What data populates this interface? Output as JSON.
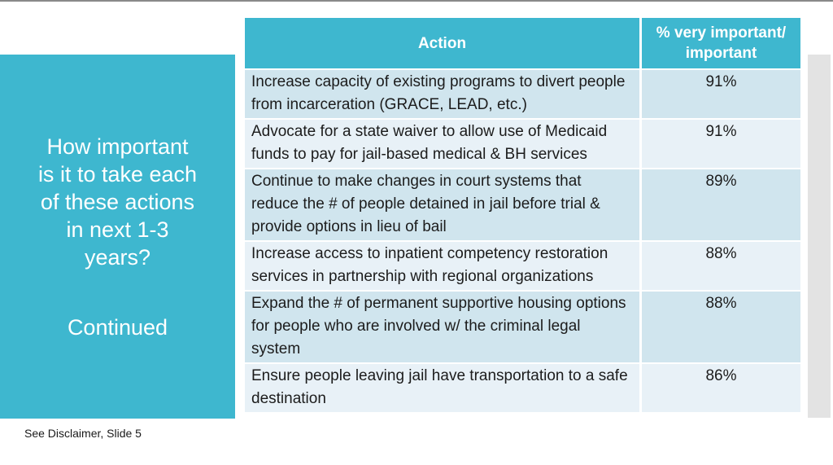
{
  "slide": {
    "title": "How important\nis it to take each\nof these actions\nin next 1-3\nyears?",
    "continued_label": "Continued",
    "footnote": "See Disclaimer, Slide 5"
  },
  "chart_data": {
    "type": "table",
    "title": "How important is it to take each of these actions in next 1-3 years? Continued",
    "columns": [
      "Action",
      "% very important/ important"
    ],
    "rows": [
      [
        "Increase capacity of existing programs to divert people from incarceration (GRACE, LEAD, etc.)",
        "91%"
      ],
      [
        "Advocate for a state waiver to allow use of Medicaid funds to pay for jail-based medical & BH services",
        "91%"
      ],
      [
        "Continue to make changes in court systems that reduce the # of people detained in jail before trial & provide options in lieu of bail",
        "89%"
      ],
      [
        "Increase access to inpatient competency restoration services in partnership with regional organizations",
        "88%"
      ],
      [
        "Expand the # of permanent supportive housing options for people who are involved w/ the criminal legal system",
        "88%"
      ],
      [
        "Ensure people leaving jail have transportation to a safe destination",
        "86%"
      ]
    ]
  },
  "colors": {
    "accent_teal": "#3eb7cf",
    "row_odd": "#d0e5ee",
    "row_even": "#e8f1f7",
    "side_strip_gray": "#e3e3e3",
    "top_border_gray": "#8a8a8a",
    "text_dark": "#1c1c1c",
    "header_text": "#ffffff"
  }
}
